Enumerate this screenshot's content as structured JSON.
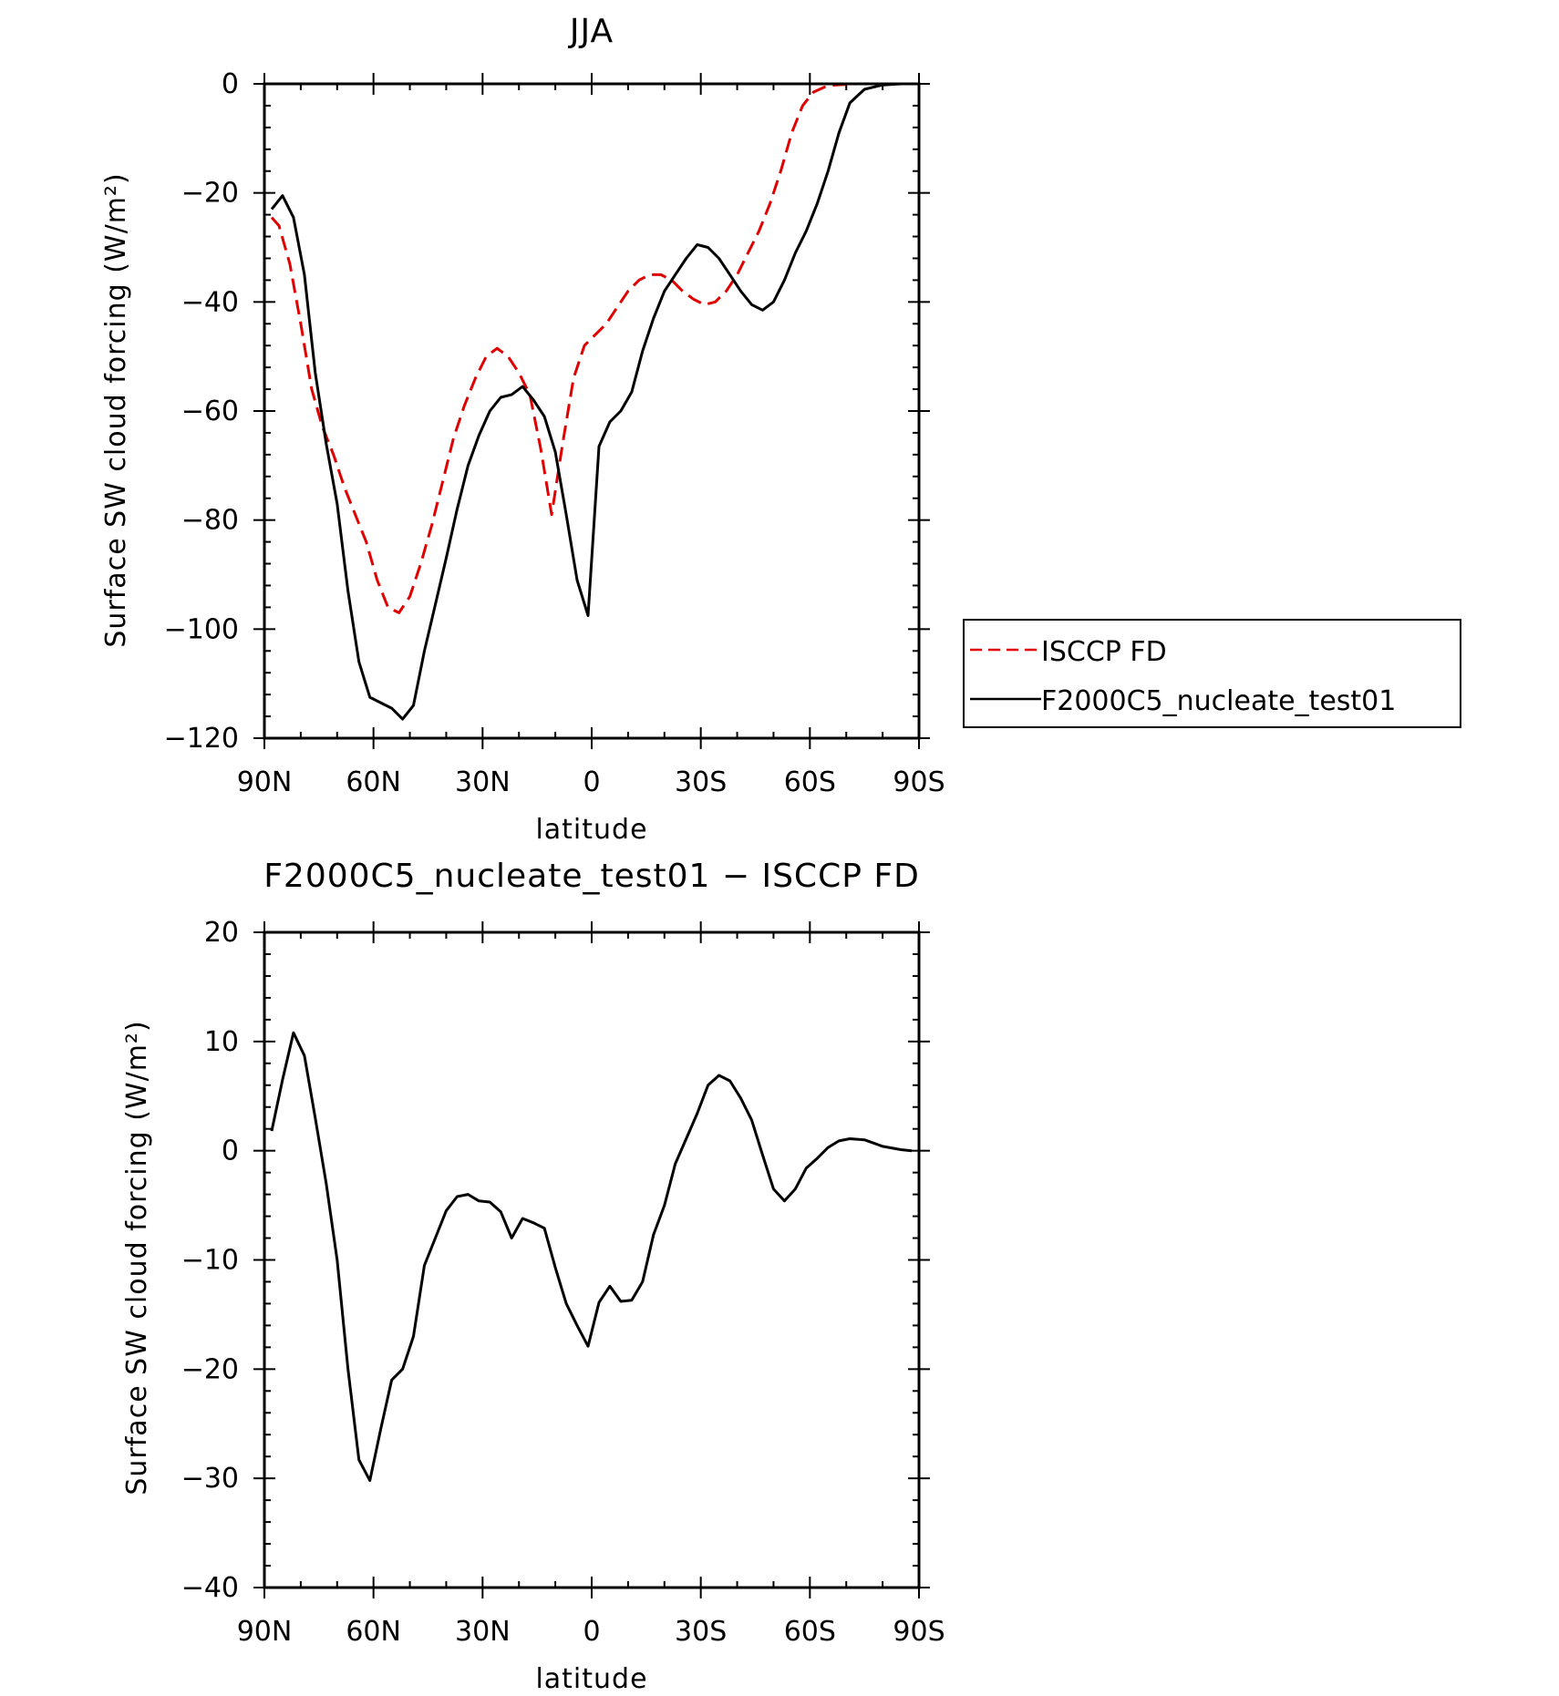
{
  "chart_data": [
    {
      "type": "line",
      "title": "JJA",
      "xlabel": "latitude",
      "ylabel": "Surface SW cloud forcing (W/m²)",
      "xlim": [
        90,
        -90
      ],
      "ylim": [
        -120,
        0
      ],
      "x_ticks": [
        {
          "value": 90,
          "label": "90N"
        },
        {
          "value": 60,
          "label": "60N"
        },
        {
          "value": 30,
          "label": "30N"
        },
        {
          "value": 0,
          "label": "0"
        },
        {
          "value": -30,
          "label": "30S"
        },
        {
          "value": -60,
          "label": "60S"
        },
        {
          "value": -90,
          "label": "90S"
        }
      ],
      "y_ticks": [
        {
          "value": 0,
          "label": "0"
        },
        {
          "value": -20,
          "label": "−20"
        },
        {
          "value": -40,
          "label": "−40"
        },
        {
          "value": -60,
          "label": "−60"
        },
        {
          "value": -80,
          "label": "−80"
        },
        {
          "value": -100,
          "label": "−100"
        },
        {
          "value": -120,
          "label": "−120"
        }
      ],
      "legend": {
        "position": "right"
      },
      "series": [
        {
          "name": "ISCCP FD",
          "color": "#e00000",
          "dash": "dashed",
          "x": [
            88,
            86,
            83,
            80,
            77,
            74,
            71,
            68,
            65,
            62,
            59,
            56,
            53,
            50,
            47,
            44,
            41,
            38,
            35,
            32,
            29,
            26,
            23,
            20,
            17,
            14,
            11,
            8,
            5,
            2,
            -1,
            -4,
            -7,
            -10,
            -13,
            -16,
            -19,
            -22,
            -25,
            -28,
            -31,
            -34,
            -37,
            -40,
            -43,
            -46,
            -49,
            -52,
            -55,
            -58,
            -61,
            -64,
            -67,
            -70,
            -73,
            -76,
            -80,
            -84,
            -88
          ],
          "values": [
            -24.5,
            -26,
            -33,
            -44,
            -56,
            -63,
            -68,
            -74,
            -79,
            -84,
            -91,
            -96,
            -97,
            -94,
            -88,
            -81,
            -73,
            -65,
            -59,
            -54,
            -50,
            -48.5,
            -50,
            -53,
            -57,
            -67,
            -79,
            -66,
            -54,
            -48,
            -46,
            -44,
            -41,
            -38,
            -36,
            -35,
            -35,
            -36,
            -38,
            -39.5,
            -40.5,
            -40,
            -38,
            -35,
            -31,
            -27,
            -22,
            -16,
            -9,
            -4,
            -1.5,
            -0.6,
            -0.2,
            -0.1,
            0,
            0,
            0,
            0,
            0
          ]
        },
        {
          "name": "F2000C5_nucleate_test01",
          "color": "#000000",
          "dash": "solid",
          "x": [
            88,
            85,
            82,
            79,
            76,
            73,
            70,
            67,
            64,
            61,
            58,
            55,
            52,
            49,
            46,
            43,
            40,
            37,
            34,
            31,
            28,
            25,
            22,
            19,
            16,
            13,
            10,
            7,
            4,
            1,
            -2,
            -5,
            -8,
            -11,
            -14,
            -17,
            -20,
            -23,
            -26,
            -29,
            -32,
            -35,
            -38,
            -41,
            -44,
            -47,
            -50,
            -53,
            -56,
            -59,
            -62,
            -65,
            -68,
            -71,
            -75,
            -80,
            -85,
            -88
          ],
          "values": [
            -23,
            -20.5,
            -24.5,
            -35,
            -53,
            -66,
            -77,
            -93,
            -106,
            -112.5,
            -113.5,
            -114.5,
            -116.5,
            -114,
            -104,
            -95.5,
            -87,
            -78,
            -70,
            -64.5,
            -60,
            -57.5,
            -57,
            -55.5,
            -58,
            -61,
            -67.5,
            -79,
            -91,
            -97.5,
            -66.5,
            -62,
            -60,
            -56.5,
            -49,
            -43,
            -38,
            -35,
            -32,
            -29.5,
            -30,
            -32,
            -35,
            -38,
            -40.5,
            -41.5,
            -40,
            -36,
            -31,
            -27,
            -22,
            -16,
            -9,
            -3.5,
            -1,
            -0.2,
            0,
            0
          ]
        }
      ]
    },
    {
      "type": "line",
      "title": "F2000C5_nucleate_test01 − ISCCP FD",
      "xlabel": "latitude",
      "ylabel": "Surface SW cloud forcing (W/m²)",
      "xlim": [
        90,
        -90
      ],
      "ylim": [
        -40,
        20
      ],
      "x_ticks": [
        {
          "value": 90,
          "label": "90N"
        },
        {
          "value": 60,
          "label": "60N"
        },
        {
          "value": 30,
          "label": "30N"
        },
        {
          "value": 0,
          "label": "0"
        },
        {
          "value": -30,
          "label": "30S"
        },
        {
          "value": -60,
          "label": "60S"
        },
        {
          "value": -90,
          "label": "90S"
        }
      ],
      "y_ticks": [
        {
          "value": 20,
          "label": "20"
        },
        {
          "value": 10,
          "label": "10"
        },
        {
          "value": 0,
          "label": "0"
        },
        {
          "value": -10,
          "label": "−10"
        },
        {
          "value": -20,
          "label": "−20"
        },
        {
          "value": -30,
          "label": "−30"
        },
        {
          "value": -40,
          "label": "−40"
        }
      ],
      "series": [
        {
          "color": "#000000",
          "dash": "solid",
          "x": [
            88,
            85,
            82,
            79,
            76,
            73,
            70,
            67,
            64,
            61,
            58,
            55,
            52,
            49,
            46,
            43,
            40,
            37,
            34,
            31,
            28,
            25,
            22,
            19,
            16,
            13,
            10,
            7,
            4,
            1,
            -2,
            -5,
            -8,
            -11,
            -14,
            -17,
            -20,
            -23,
            -26,
            -29,
            -32,
            -35,
            -38,
            -41,
            -44,
            -47,
            -50,
            -53,
            -56,
            -59,
            -62,
            -65,
            -68,
            -71,
            -75,
            -80,
            -85,
            -88
          ],
          "values": [
            1.8,
            6.5,
            10.8,
            8.7,
            3,
            -3,
            -10,
            -20,
            -28.3,
            -30.2,
            -25.5,
            -21,
            -20,
            -17,
            -10.5,
            -8,
            -5.5,
            -4.2,
            -4,
            -4.6,
            -4.7,
            -5.6,
            -8,
            -6.2,
            -6.6,
            -7.1,
            -10.7,
            -14,
            -16,
            -17.9,
            -13.9,
            -12.4,
            -13.8,
            -13.7,
            -12,
            -7.7,
            -5,
            -1.2,
            1.1,
            3.4,
            6,
            6.9,
            6.4,
            4.8,
            2.8,
            -0.4,
            -3.5,
            -4.6,
            -3.5,
            -1.6,
            -0.7,
            0.3,
            0.9,
            1.1,
            1,
            0.4,
            0.1,
            0
          ]
        }
      ]
    }
  ]
}
